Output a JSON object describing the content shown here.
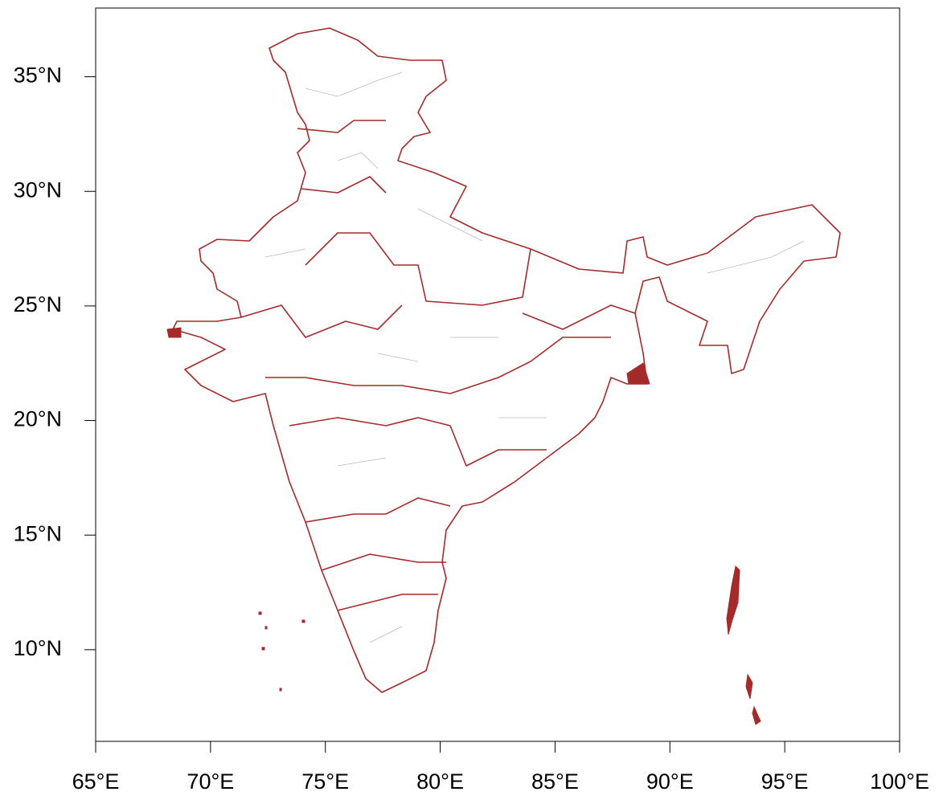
{
  "map": {
    "xlim": [
      65,
      100
    ],
    "ylim": [
      6,
      38
    ],
    "xticks": [
      {
        "value": 65,
        "label": "65°E"
      },
      {
        "value": 70,
        "label": "70°E"
      },
      {
        "value": 75,
        "label": "75°E"
      },
      {
        "value": 80,
        "label": "80°E"
      },
      {
        "value": 85,
        "label": "85°E"
      },
      {
        "value": 90,
        "label": "90°E"
      },
      {
        "value": 95,
        "label": "95°E"
      },
      {
        "value": 100,
        "label": "100°E"
      }
    ],
    "yticks": [
      {
        "value": 10,
        "label": "10°N"
      },
      {
        "value": 15,
        "label": "15°N"
      },
      {
        "value": 20,
        "label": "20°N"
      },
      {
        "value": 25,
        "label": "25°N"
      },
      {
        "value": 30,
        "label": "30°N"
      },
      {
        "value": 35,
        "label": "35°N"
      }
    ]
  }
}
